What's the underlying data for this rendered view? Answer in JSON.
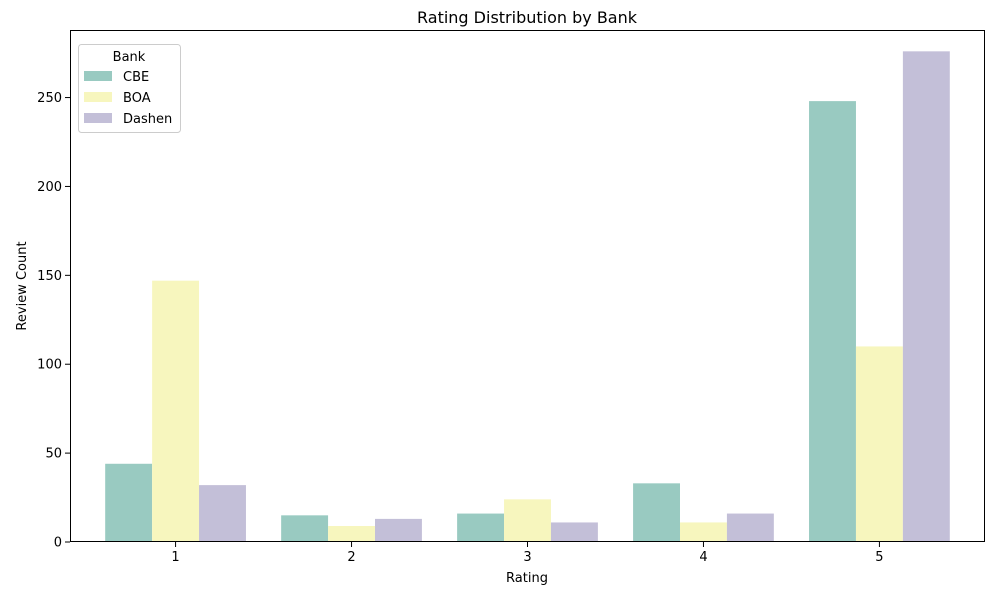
{
  "chart_data": {
    "type": "bar",
    "title": "Rating Distribution by Bank",
    "xlabel": "Rating",
    "ylabel": "Review Count",
    "categories": [
      "1",
      "2",
      "3",
      "4",
      "5"
    ],
    "ylim": [
      0,
      288
    ],
    "yticks": [
      0,
      50,
      100,
      150,
      200,
      250
    ],
    "grid": false,
    "legend": {
      "title": "Bank",
      "placement": "top-left"
    },
    "series": [
      {
        "name": "CBE",
        "color": "#99cac1",
        "values": [
          44,
          15,
          16,
          33,
          248
        ]
      },
      {
        "name": "BOA",
        "color": "#f7f6be",
        "values": [
          147,
          9,
          24,
          11,
          110
        ]
      },
      {
        "name": "Dashen",
        "color": "#c3bfd8",
        "values": [
          32,
          13,
          11,
          16,
          276
        ]
      }
    ]
  }
}
